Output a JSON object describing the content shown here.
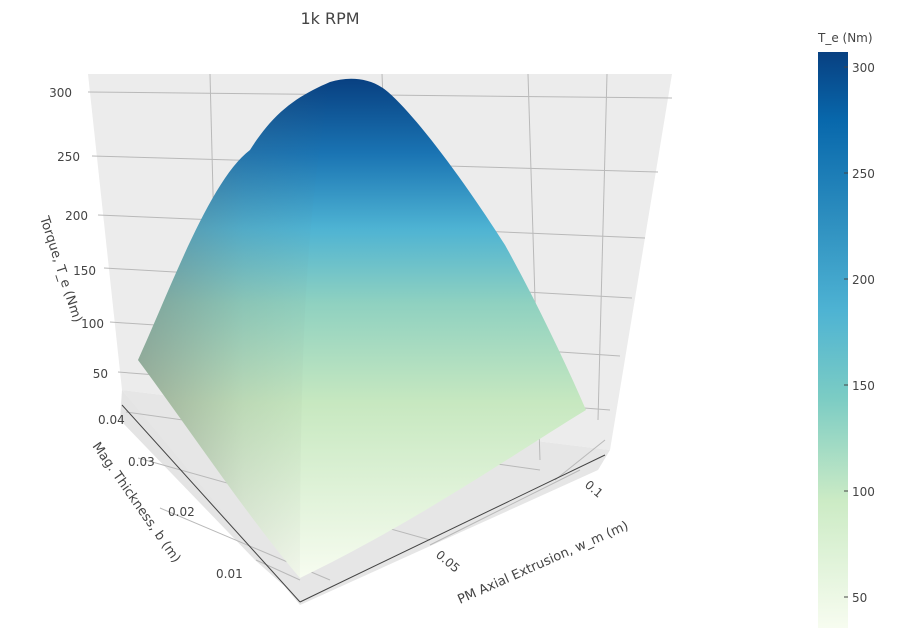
{
  "chart_data": {
    "type": "surface",
    "title": "1k RPM",
    "x_axis": {
      "label": "PM Axial Extrusion, w_m (m)",
      "ticks": [
        "0.05",
        "0.1"
      ],
      "range": [
        0.01,
        0.12
      ]
    },
    "y_axis": {
      "label": "Mag. Thickness, b (m)",
      "ticks": [
        "0.01",
        "0.02",
        "0.03",
        "0.04"
      ],
      "range": [
        0.005,
        0.045
      ]
    },
    "z_axis": {
      "label": "Torque, T_e (Nm)",
      "ticks": [
        "50",
        "100",
        "150",
        "200",
        "250",
        "300"
      ],
      "range": [
        20,
        310
      ]
    },
    "colorbar": {
      "title": "T_e (Nm)",
      "ticks": [
        "50",
        "100",
        "150",
        "200",
        "250",
        "300"
      ],
      "range": [
        35,
        310
      ],
      "colorscale": [
        "#f7fcf0",
        "#ccebc5",
        "#7bccc4",
        "#4eb3d3",
        "#2b8cbe",
        "#0868ac",
        "#084081"
      ]
    },
    "surface_samples": [
      {
        "w_m": 0.01,
        "b": 0.005,
        "T_e": 38
      },
      {
        "w_m": 0.12,
        "b": 0.005,
        "T_e": 45
      },
      {
        "w_m": 0.01,
        "b": 0.045,
        "T_e": 60
      },
      {
        "w_m": 0.06,
        "b": 0.045,
        "T_e": 305
      },
      {
        "w_m": 0.12,
        "b": 0.045,
        "T_e": 58
      }
    ],
    "grid": true
  }
}
